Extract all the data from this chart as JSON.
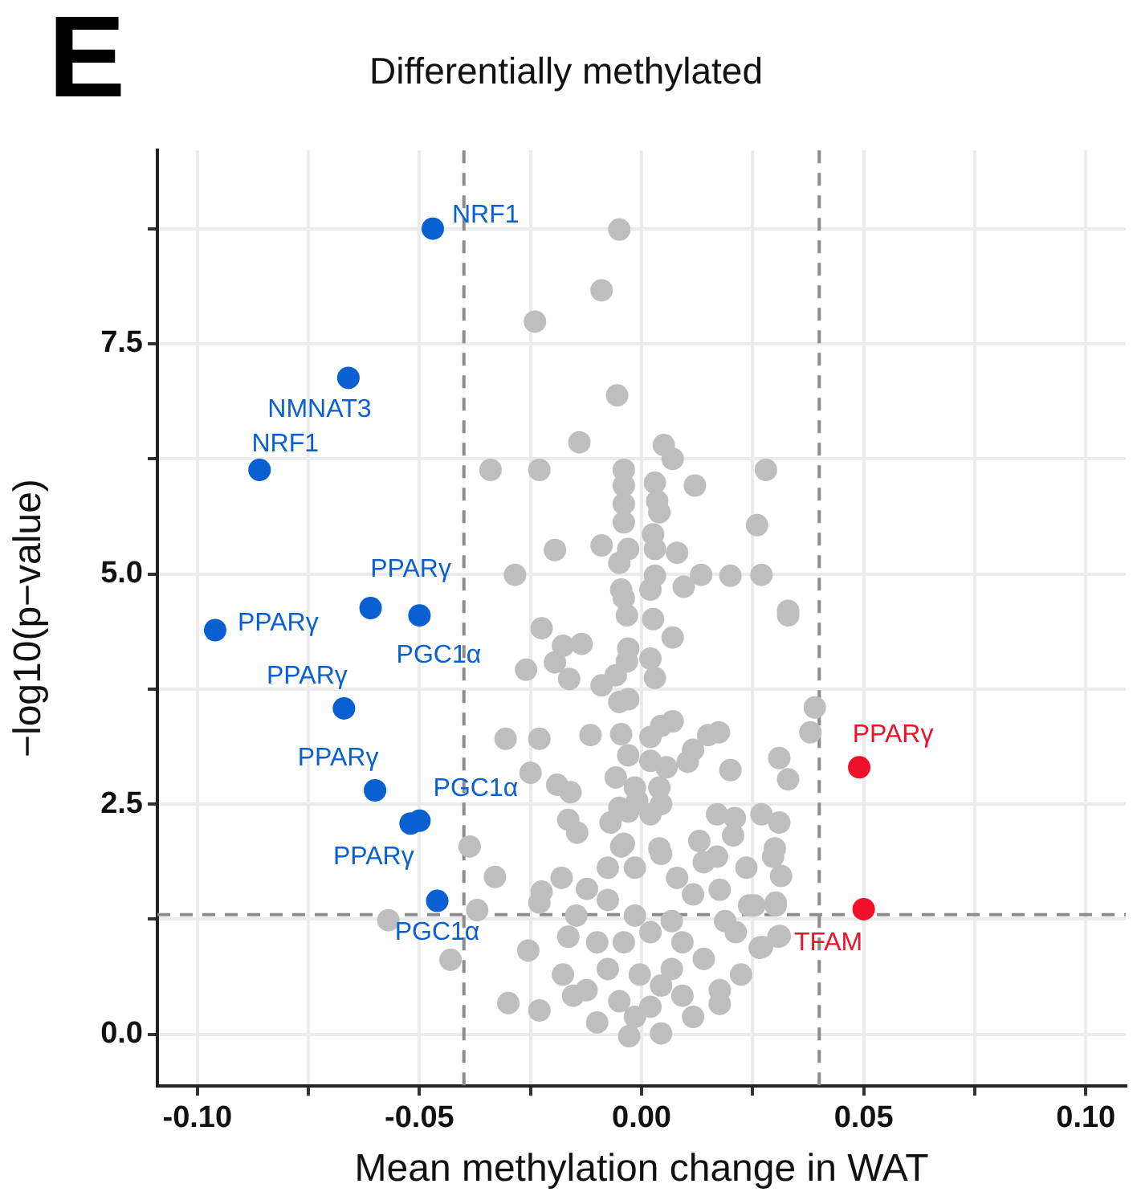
{
  "chart_data": {
    "type": "scatter",
    "title": "Differentially methylated",
    "xlabel": "Mean methylation change in WAT",
    "ylabel": "−log10(p−value)",
    "xlim": [
      -0.109,
      0.109
    ],
    "ylim": [
      -0.56,
      9.6
    ],
    "xticks": [
      {
        "value": -0.1,
        "label": "-0.10"
      },
      {
        "value": -0.075,
        "label": null
      },
      {
        "value": -0.05,
        "label": "-0.05"
      },
      {
        "value": -0.025,
        "label": null
      },
      {
        "value": 0,
        "label": "0.00"
      },
      {
        "value": 0.025,
        "label": null
      },
      {
        "value": 0.05,
        "label": "0.05"
      },
      {
        "value": 0.075,
        "label": null
      },
      {
        "value": 0.1,
        "label": "0.10"
      }
    ],
    "yticks": [
      {
        "value": 0,
        "label": "0.0"
      },
      {
        "value": 1.25,
        "label": null
      },
      {
        "value": 2.5,
        "label": "2.5"
      },
      {
        "value": 3.75,
        "label": null
      },
      {
        "value": 5,
        "label": "5.0"
      },
      {
        "value": 6.25,
        "label": null
      },
      {
        "value": 7.5,
        "label": "7.5"
      },
      {
        "value": 8.75,
        "label": null
      }
    ],
    "grid": true,
    "legend": false,
    "marker": "circle",
    "ref_lines": [
      {
        "axis": "x",
        "value": -0.04,
        "color": "#8c8c8c",
        "line_style": "dashed"
      },
      {
        "axis": "x",
        "value": 0.04,
        "color": "#8c8c8c",
        "line_style": "dashed"
      },
      {
        "axis": "y",
        "value": 1.3,
        "color": "#8c8c8c",
        "line_style": "dashed"
      }
    ],
    "series": [
      {
        "color": "#bebebe",
        "x": [
          -0.005,
          -0.009,
          -0.024,
          -0.0055,
          -0.014,
          -0.034,
          -0.023,
          -0.004,
          -0.004,
          -0.004,
          -0.004,
          0.005,
          0.007,
          0.003,
          0.0035,
          0.004,
          0.012,
          0.028,
          0.026,
          -0.0195,
          -0.009,
          -0.003,
          -0.005,
          0.0026,
          0.003,
          0.008,
          -0.0285,
          0.003,
          0.0134,
          0.02,
          0.027,
          0.0095,
          -0.0046,
          0.002,
          0.033,
          -0.004,
          -0.0033,
          0.0026,
          0.007,
          -0.0225,
          -0.0177,
          -0.0135,
          -0.0195,
          -0.026,
          -0.0163,
          -0.003,
          -0.0033,
          -0.0058,
          -0.009,
          0.002,
          0.003,
          -0.005,
          -0.003,
          0.033,
          0.039,
          0.038,
          -0.0306,
          -0.023,
          -0.0115,
          -0.0046,
          0.002,
          0.0044,
          0.007,
          0.015,
          0.0174,
          -0.003,
          0.002,
          0.0056,
          0.0116,
          0.0104,
          0.02,
          0.031,
          0.033,
          -0.025,
          -0.019,
          -0.016,
          -0.0058,
          -0.0015,
          0.004,
          -0.005,
          -0.001,
          0.002,
          0.0044,
          -0.0165,
          -0.0145,
          -0.007,
          -0.003,
          0.017,
          0.021,
          0.027,
          0.031,
          0.0206,
          0.013,
          -0.0387,
          -0.004,
          0.004,
          0.03,
          -0.033,
          -0.0225,
          -0.018,
          -0.023,
          -0.037,
          -0.057,
          -0.043,
          -0.0255,
          -0.03,
          -0.023,
          -0.0046,
          -0.0076,
          -0.0015,
          0.0044,
          0.008,
          0.0116,
          0.014,
          0.0176,
          0.017,
          0.0236,
          0.0296,
          0.0314,
          0.0242,
          0.0302,
          0.0188,
          0.0212,
          0.0266,
          0.0308,
          0.0224,
          0.0176,
          0.0176,
          0.014,
          0.0116,
          0.0044,
          -0.0028,
          -0.01,
          -0.0154,
          -0.0177,
          -0.0165,
          -0.0147,
          -0.0123,
          -0.0076,
          -0.0015,
          -0.004,
          0.002,
          0.0068,
          0.0092,
          -0.0076,
          -0.0004,
          0.0068,
          -0.005,
          0.002,
          0.0092,
          -0.0124,
          -0.0015,
          0.0044,
          -0.01,
          0.0254,
          0.0302,
          0.0311,
          0.0271
        ],
        "values": [
          8.74,
          8.08,
          7.74,
          6.94,
          6.43,
          6.13,
          6.13,
          6.13,
          5.96,
          5.76,
          5.56,
          6.4,
          6.25,
          5.99,
          5.79,
          5.67,
          5.96,
          6.13,
          5.53,
          5.26,
          5.31,
          5.27,
          5.12,
          5.43,
          5.27,
          5.23,
          4.99,
          4.98,
          4.99,
          4.98,
          4.99,
          4.86,
          4.83,
          4.83,
          4.6,
          4.74,
          4.55,
          4.51,
          4.31,
          4.41,
          4.22,
          4.24,
          4.04,
          3.96,
          3.86,
          4.19,
          4.05,
          3.9,
          3.79,
          4.08,
          3.87,
          3.61,
          3.64,
          4.55,
          3.55,
          3.28,
          3.21,
          3.21,
          3.25,
          3.26,
          3.23,
          3.35,
          3.4,
          3.25,
          3.28,
          3.03,
          2.97,
          2.9,
          3.09,
          2.96,
          2.87,
          3,
          2.77,
          2.84,
          2.71,
          2.63,
          2.79,
          2.68,
          2.68,
          2.46,
          2.54,
          2.39,
          2.5,
          2.33,
          2.19,
          2.3,
          2.42,
          2.39,
          2.35,
          2.39,
          2.3,
          2.16,
          2.1,
          2.04,
          2.07,
          2.02,
          2.02,
          1.71,
          1.55,
          1.7,
          1.43,
          1.35,
          1.24,
          0.81,
          0.91,
          0.34,
          0.26,
          2.04,
          1.81,
          1.81,
          1.96,
          1.7,
          1.52,
          1.87,
          1.57,
          1.93,
          1.81,
          1.93,
          1.72,
          1.4,
          1.43,
          1.23,
          1.11,
          0.94,
          1.06,
          0.65,
          0.48,
          0.33,
          0.82,
          0.19,
          0.01,
          -0.02,
          0.13,
          0.42,
          0.65,
          1.06,
          1.29,
          1.58,
          1.46,
          1.29,
          1.0,
          1.11,
          1.23,
          1.0,
          0.71,
          0.65,
          0.71,
          0.36,
          0.3,
          0.42,
          0.48,
          0.19,
          0.53,
          1.0,
          1.4,
          1.4,
          1.07,
          0.95
        ]
      },
      {
        "color": "#0a5fd1",
        "x": [
          -0.047,
          -0.066,
          -0.086,
          -0.061,
          -0.05,
          -0.096,
          -0.067,
          -0.06,
          -0.05,
          -0.052,
          -0.046
        ],
        "values": [
          8.75,
          7.13,
          6.13,
          4.63,
          4.55,
          4.39,
          3.54,
          2.65,
          2.32,
          2.29,
          1.45
        ]
      },
      {
        "color": "#f0102a",
        "x": [
          0.049,
          0.05
        ],
        "values": [
          2.9,
          1.36
        ]
      }
    ],
    "annotations": [
      "E",
      {
        "text": "NRF1",
        "x": -0.047,
        "y": 8.75
      },
      {
        "text": "NMNAT3",
        "x": -0.066,
        "y": 7.13
      },
      {
        "text": "NRF1",
        "x": -0.086,
        "y": 6.13
      },
      {
        "text": "PPARγ",
        "x": -0.061,
        "y": 4.63
      },
      {
        "text": "PGC1α",
        "x": -0.05,
        "y": 4.55
      },
      {
        "text": "PPARγ",
        "x": -0.096,
        "y": 4.39
      },
      {
        "text": "PPARγ",
        "x": -0.067,
        "y": 3.54
      },
      {
        "text": "PPARγ",
        "x": -0.06,
        "y": 2.65
      },
      {
        "text": "PGC1α",
        "x": -0.05,
        "y": 2.32
      },
      {
        "text": "PPARγ",
        "x": -0.052,
        "y": 2.29
      },
      {
        "text": "PGC1α",
        "x": -0.046,
        "y": 1.45
      },
      {
        "text": "PPARγ",
        "x": 0.049,
        "y": 2.9
      },
      {
        "text": "TFAM",
        "x": 0.05,
        "y": 1.36
      }
    ]
  }
}
